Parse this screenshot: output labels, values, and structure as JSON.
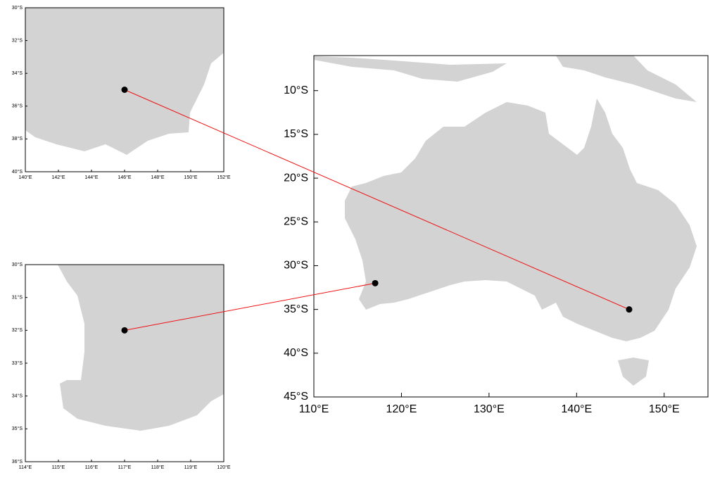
{
  "chart_data": [
    {
      "type": "map",
      "xlim": [
        110,
        155
      ],
      "ylim": [
        -45,
        -6
      ],
      "xticks": [
        {
          "value": 110,
          "label": "110°E"
        },
        {
          "value": 120,
          "label": "120°E"
        },
        {
          "value": 130,
          "label": "130°E"
        },
        {
          "value": 140,
          "label": "140°E"
        },
        {
          "value": 150,
          "label": "150°E"
        }
      ],
      "yticks": [
        {
          "value": -10,
          "label": "10°S"
        },
        {
          "value": -15,
          "label": "15°S"
        },
        {
          "value": -20,
          "label": "20°S"
        },
        {
          "value": -25,
          "label": "25°S"
        },
        {
          "value": -30,
          "label": "30°S"
        },
        {
          "value": -35,
          "label": "35°S"
        },
        {
          "value": -40,
          "label": "40°S"
        },
        {
          "value": -45,
          "label": "45°S"
        }
      ],
      "x": [
        146,
        117
      ],
      "values": [
        -35,
        -32
      ],
      "color": "#000000",
      "land_color": "#d3d3d3",
      "line_color": "#ee1111"
    },
    {
      "type": "map",
      "xlim": [
        140,
        152
      ],
      "ylim": [
        -40,
        -30
      ],
      "xticks": [
        {
          "value": 140,
          "label": "140°E"
        },
        {
          "value": 142,
          "label": "142°E"
        },
        {
          "value": 144,
          "label": "144°E"
        },
        {
          "value": 146,
          "label": "146°E"
        },
        {
          "value": 148,
          "label": "148°E"
        },
        {
          "value": 150,
          "label": "150°E"
        },
        {
          "value": 152,
          "label": "152°E"
        }
      ],
      "yticks": [
        {
          "value": -30,
          "label": "30°S"
        },
        {
          "value": -32,
          "label": "32°S"
        },
        {
          "value": -34,
          "label": "34°S"
        },
        {
          "value": -36,
          "label": "36°S"
        },
        {
          "value": -38,
          "label": "38°S"
        },
        {
          "value": -40,
          "label": "40°S"
        }
      ],
      "x": [
        146
      ],
      "values": [
        -35
      ],
      "color": "#000000"
    },
    {
      "type": "map",
      "xlim": [
        114,
        120
      ],
      "ylim": [
        -36,
        -30
      ],
      "xticks": [
        {
          "value": 114,
          "label": "114°E"
        },
        {
          "value": 115,
          "label": "115°E"
        },
        {
          "value": 116,
          "label": "116°E"
        },
        {
          "value": 117,
          "label": "117°E"
        },
        {
          "value": 118,
          "label": "118°E"
        },
        {
          "value": 119,
          "label": "119°E"
        },
        {
          "value": 120,
          "label": "120°E"
        }
      ],
      "yticks": [
        {
          "value": -30,
          "label": "30°S"
        },
        {
          "value": -31,
          "label": "31°S"
        },
        {
          "value": -32,
          "label": "32°S"
        },
        {
          "value": -33,
          "label": "33°S"
        },
        {
          "value": -34,
          "label": "34°S"
        },
        {
          "value": -35,
          "label": "35°S"
        },
        {
          "value": -36,
          "label": "36°S"
        }
      ],
      "x": [
        117
      ],
      "values": [
        -32
      ],
      "color": "#000000"
    }
  ]
}
